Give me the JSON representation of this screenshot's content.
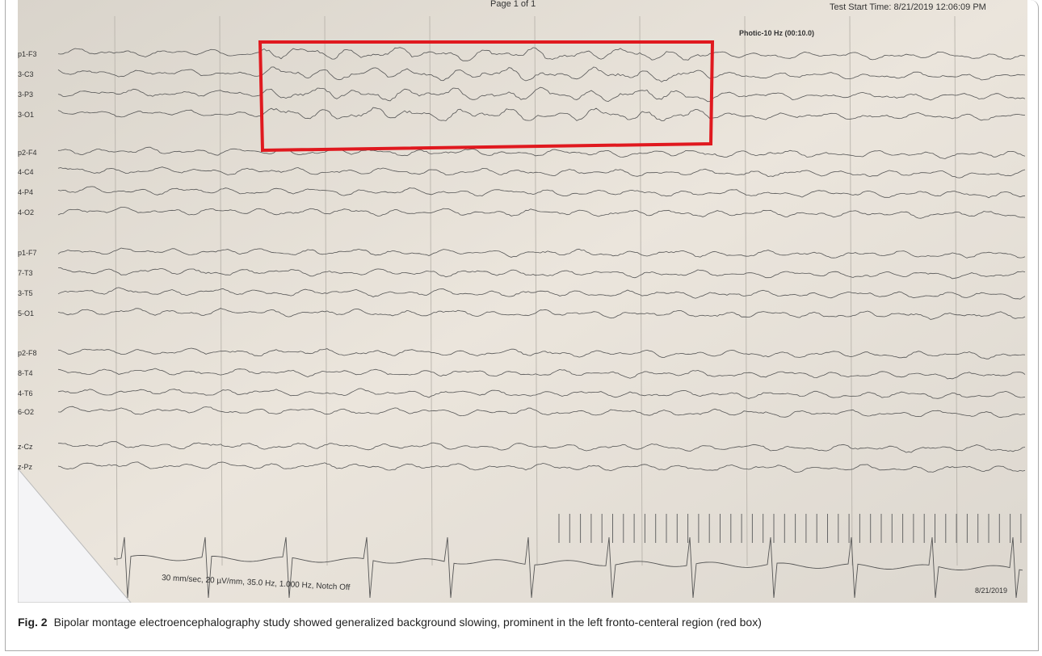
{
  "header": {
    "page": "Page 1 of 1",
    "test_start": "Test Start Time: 8/21/2019 12:06:09 PM",
    "photic": "Photic-10 Hz (00:10.0)"
  },
  "channels": [
    "p1-F3",
    "3-C3",
    "3-P3",
    "3-O1",
    "p2-F4",
    "4-C4",
    "4-P4",
    "4-O2",
    "p1-F7",
    "7-T3",
    "3-T5",
    "5-O1",
    "p2-F8",
    "8-T4",
    "4-T6",
    "6-O2",
    "z-Cz",
    "z-Pz"
  ],
  "footer": {
    "settings": "30 mm/sec, 20 µV/mm, 35.0 Hz, 1.000 Hz, Notch Off",
    "date": "8/21/2019"
  },
  "caption": {
    "label": "Fig. 2",
    "text": "Bipolar montage electroencephalography study showed generalized background slowing, prominent in the left fronto-centeral region (red box)"
  }
}
